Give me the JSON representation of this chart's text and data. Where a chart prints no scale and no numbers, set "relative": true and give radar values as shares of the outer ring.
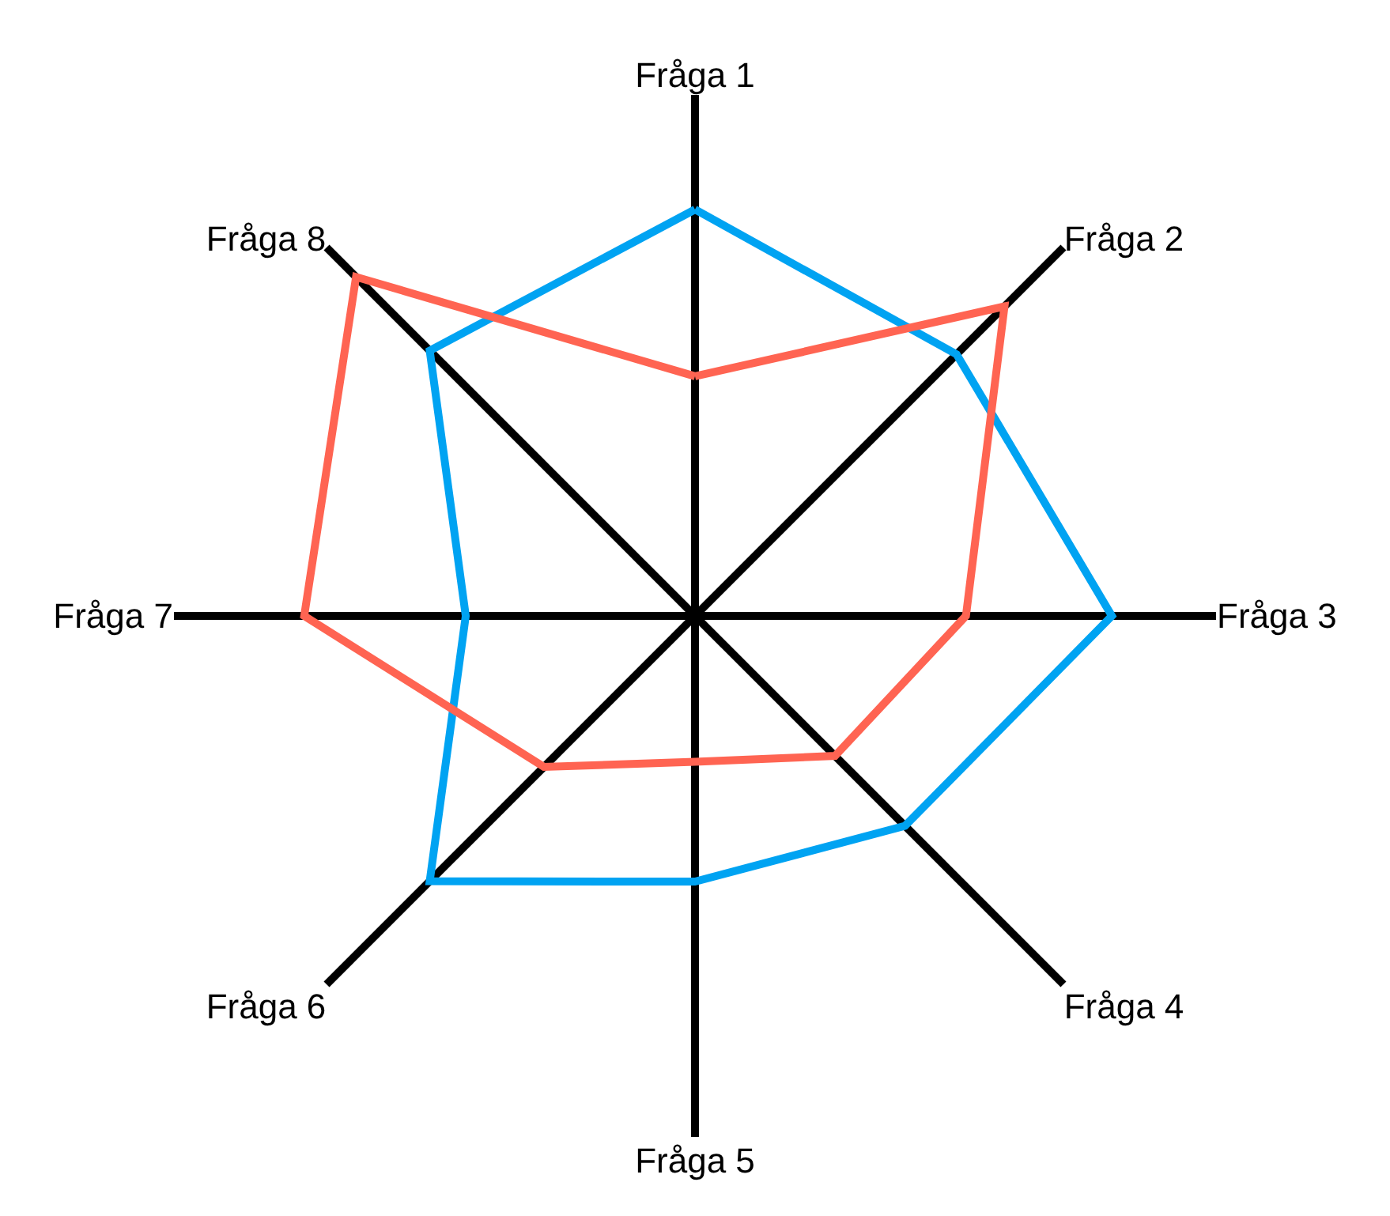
{
  "chart_data": {
    "type": "radar",
    "relative": true,
    "categories": [
      "Fråga 1",
      "Fråga 2",
      "Fråga 3",
      "Fråga 4",
      "Fråga 5",
      "Fråga 6",
      "Fråga 7",
      "Fråga 8"
    ],
    "series": [
      {
        "color": "#00a3f2",
        "values": [
          0.78,
          0.71,
          0.8,
          0.57,
          0.51,
          0.72,
          0.44,
          0.72
        ]
      },
      {
        "color": "#ff6452",
        "values": [
          0.46,
          0.84,
          0.52,
          0.38,
          0.28,
          0.41,
          0.75,
          0.92
        ]
      }
    ],
    "marker": "none"
  }
}
